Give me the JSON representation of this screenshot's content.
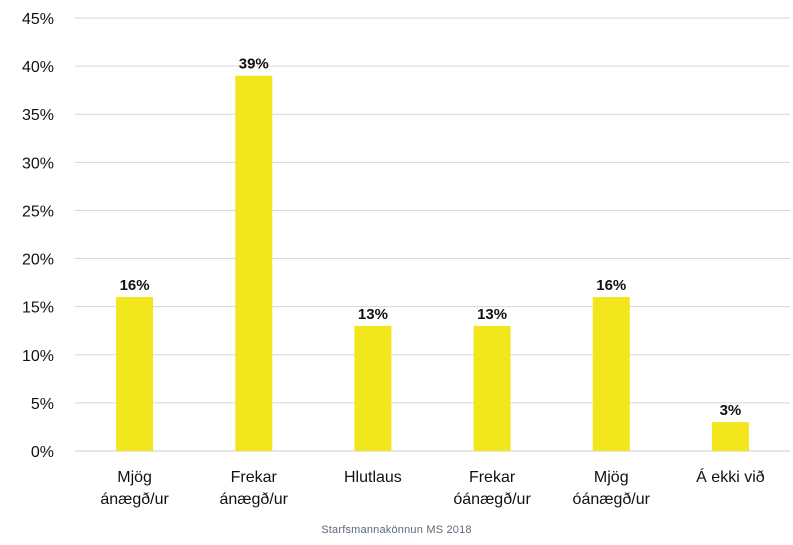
{
  "chart_data": {
    "type": "bar",
    "categories": [
      [
        "Mjög",
        "ánægð/ur"
      ],
      [
        "Frekar",
        "ánægð/ur"
      ],
      [
        "Hlutlaus"
      ],
      [
        "Frekar",
        "óánægð/ur"
      ],
      [
        "Mjög",
        "óánægð/ur"
      ],
      [
        "Á ekki við"
      ]
    ],
    "values": [
      16,
      39,
      13,
      13,
      16,
      3
    ],
    "data_labels": [
      "16%",
      "39%",
      "13%",
      "13%",
      "16%",
      "3%"
    ],
    "ylim": [
      0,
      45
    ],
    "y_ticks": [
      0,
      5,
      10,
      15,
      20,
      25,
      30,
      35,
      40,
      45
    ],
    "y_tick_labels": [
      "0%",
      "5%",
      "10%",
      "15%",
      "20%",
      "25%",
      "30%",
      "35%",
      "40%",
      "45%"
    ],
    "grid": true,
    "legend": "none",
    "colors": {
      "bar": "#f2e61c",
      "grid": "#d6d6d6",
      "axis_text": "#111111"
    }
  },
  "footer": {
    "caption": "Starfsmannakönnun MS 2018"
  }
}
